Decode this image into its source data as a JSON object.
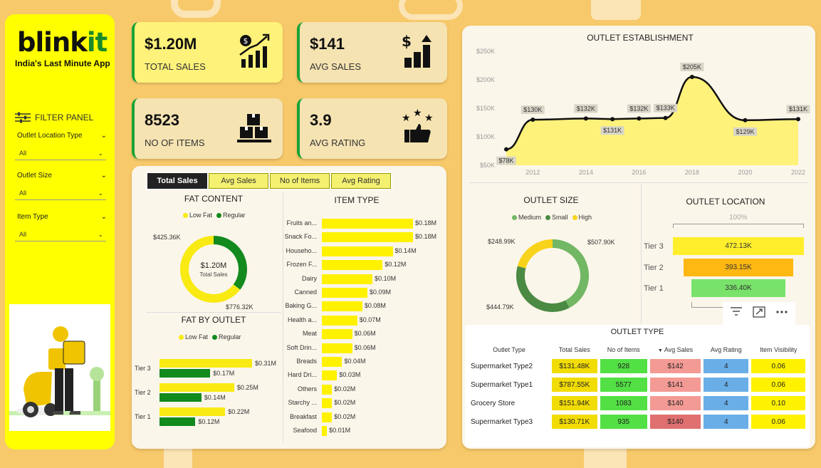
{
  "brand": {
    "logo_main": "blink",
    "logo_accent": "it",
    "tagline": "India's Last Minute App"
  },
  "filters": {
    "title": "FILTER PANEL",
    "items": [
      {
        "label": "Outlet Location Type",
        "value": "All"
      },
      {
        "label": "Outlet Size",
        "value": "All"
      },
      {
        "label": "Item Type",
        "value": "All"
      }
    ]
  },
  "kpis": [
    {
      "value": "$1.20M",
      "label": "TOTAL SALES",
      "icon": "money-growth-icon"
    },
    {
      "value": "$141",
      "label": "AVG SALES",
      "icon": "dollar-bars-icon"
    },
    {
      "value": "8523",
      "label": "NO OF ITEMS",
      "icon": "boxes-icon"
    },
    {
      "value": "3.9",
      "label": "AVG RATING",
      "icon": "stars-thumb-icon"
    }
  ],
  "tabs": [
    "Total Sales",
    "Avg Sales",
    "No of Items",
    "Avg Rating"
  ],
  "active_tab": "Total Sales",
  "fat_content": {
    "title": "FAT CONTENT",
    "legend": [
      "Low Fat",
      "Regular"
    ],
    "center_value": "$1.20M",
    "center_label": "Total Sales",
    "values": [
      776.32,
      425.36
    ],
    "labels": [
      "$776.32K",
      "$425.36K"
    ],
    "colors": [
      "#f8ea12",
      "#128a1e"
    ]
  },
  "fat_by_outlet": {
    "title": "FAT BY OUTLET",
    "legend": [
      "Low Fat",
      "Regular"
    ],
    "rows": [
      {
        "tier": "Tier 3",
        "low": 0.31,
        "reg": 0.17,
        "low_label": "$0.31M",
        "reg_label": "$0.17M"
      },
      {
        "tier": "Tier 2",
        "low": 0.25,
        "reg": 0.14,
        "low_label": "$0.25M",
        "reg_label": "$0.14M"
      },
      {
        "tier": "Tier 1",
        "low": 0.22,
        "reg": 0.12,
        "low_label": "$0.22M",
        "reg_label": "$0.12M"
      }
    ]
  },
  "item_type": {
    "title": "ITEM TYPE",
    "rows": [
      {
        "name": "Fruits an...",
        "value": 0.18,
        "label": "$0.18M"
      },
      {
        "name": "Snack Fo...",
        "value": 0.18,
        "label": "$0.18M"
      },
      {
        "name": "Househo...",
        "value": 0.14,
        "label": "$0.14M"
      },
      {
        "name": "Frozen F...",
        "value": 0.12,
        "label": "$0.12M"
      },
      {
        "name": "Dairy",
        "value": 0.1,
        "label": "$0.10M"
      },
      {
        "name": "Canned",
        "value": 0.09,
        "label": "$0.09M"
      },
      {
        "name": "Baking G...",
        "value": 0.08,
        "label": "$0.08M"
      },
      {
        "name": "Health a...",
        "value": 0.07,
        "label": "$0.07M"
      },
      {
        "name": "Meat",
        "value": 0.06,
        "label": "$0.06M"
      },
      {
        "name": "Soft Drin...",
        "value": 0.06,
        "label": "$0.06M"
      },
      {
        "name": "Breads",
        "value": 0.04,
        "label": "$0.04M"
      },
      {
        "name": "Hard Dri...",
        "value": 0.03,
        "label": "$0.03M"
      },
      {
        "name": "Others",
        "value": 0.02,
        "label": "$0.02M"
      },
      {
        "name": "Starchy ...",
        "value": 0.02,
        "label": "$0.02M"
      },
      {
        "name": "Breakfast",
        "value": 0.02,
        "label": "$0.02M"
      },
      {
        "name": "Seafood",
        "value": 0.01,
        "label": "$0.01M"
      }
    ]
  },
  "chart_data": [
    {
      "type": "area",
      "title": "OUTLET ESTABLISHMENT",
      "x": [
        2011,
        2012,
        2014,
        2015,
        2016,
        2017,
        2018,
        2020,
        2022
      ],
      "values": [
        78,
        130,
        132,
        131,
        132,
        133,
        205,
        129,
        131
      ],
      "labels": [
        "$78K",
        "$130K",
        "$132K",
        "$131K",
        "$132K",
        "$133K",
        "$205K",
        "$129K",
        "$131K"
      ],
      "ylim": [
        50,
        250
      ],
      "yticks": [
        "$50K",
        "$100K",
        "$150K",
        "$200K",
        "$250K"
      ],
      "xticks": [
        "2012",
        "2014",
        "2016",
        "2018",
        "2020",
        "2022"
      ]
    },
    {
      "type": "pie",
      "title": "OUTLET SIZE",
      "legend": [
        "Medium",
        "Small",
        "High"
      ],
      "values": [
        507.9,
        444.79,
        248.99
      ],
      "labels": [
        "$507.90K",
        "$444.79K",
        "$248.99K"
      ],
      "colors": [
        "#72b764",
        "#4b8a43",
        "#f8d31b"
      ]
    },
    {
      "type": "bar",
      "title": "OUTLET LOCATION",
      "top_label": "100%",
      "categories": [
        "Tier 3",
        "Tier 2",
        "Tier 1"
      ],
      "values": [
        472.13,
        393.15,
        336.4
      ],
      "labels": [
        "472.13K",
        "393.15K",
        "336.40K"
      ],
      "colors": [
        "#ffee2c",
        "#ffb712",
        "#79e26b"
      ]
    }
  ],
  "outlet_type": {
    "title": "OUTLET TYPE",
    "headers": [
      "Outlet Type",
      "Total Sales",
      "No of Items",
      "Avg Sales",
      "Avg Rating",
      "Item Visibility"
    ],
    "rows": [
      [
        "Supermarket Type2",
        "$131.48K",
        "928",
        "$142",
        "4",
        "0.06"
      ],
      [
        "Supermarket Type1",
        "$787.55K",
        "5577",
        "$141",
        "4",
        "0.06"
      ],
      [
        "Grocery Store",
        "$151.94K",
        "1083",
        "$140",
        "4",
        "0.10"
      ],
      [
        "Supermarket Type3",
        "$130.71K",
        "935",
        "$140",
        "4",
        "0.06"
      ]
    ]
  },
  "visual_controls": [
    "filter-icon",
    "focus-mode-icon",
    "more-options-icon"
  ]
}
